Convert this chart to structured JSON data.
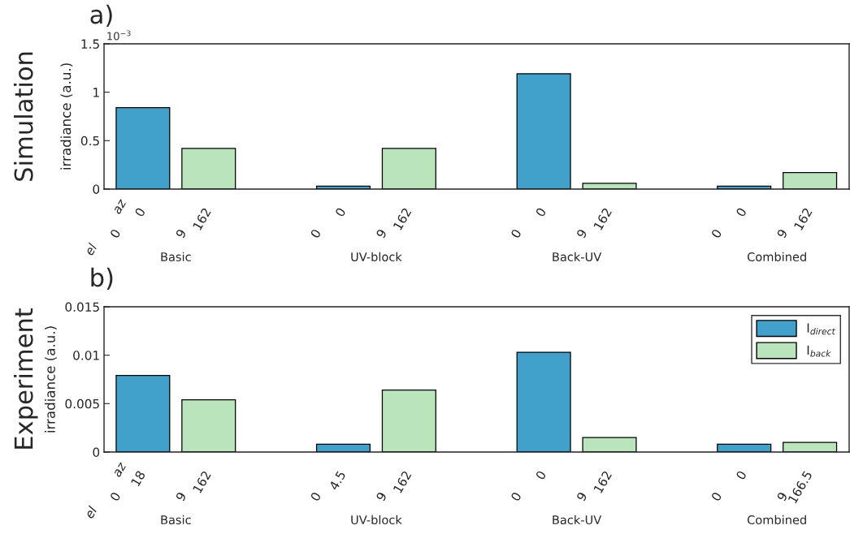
{
  "chart_data": [
    {
      "type": "bar",
      "title": "a)",
      "ylabel": "irradiance (a.u.)",
      "categories": [
        "Basic",
        "UV-block",
        "Back-UV",
        "Combined"
      ],
      "series": [
        {
          "color": "#42a1cb",
          "values": [
            0.84,
            0.03,
            1.19,
            0.03
          ]
        },
        {
          "color": "#bae4bc",
          "values": [
            0.42,
            0.42,
            0.06,
            0.17
          ]
        }
      ],
      "ylim": [
        0,
        1.5
      ],
      "yticks": [
        0,
        0.5,
        1,
        1.5
      ],
      "grid": false,
      "legend": false,
      "annotations": [
        "Simulation",
        "10$^{−3}$",
        "az",
        "el",
        "0",
        "162",
        "0",
        "162",
        "0",
        "162",
        "0",
        "162",
        "0",
        "9",
        "0",
        "9",
        "0",
        "9",
        "0",
        "9"
      ]
    },
    {
      "type": "bar",
      "title": "b)",
      "ylabel": "irradiance (a.u.)",
      "categories": [
        "Basic",
        "UV-block",
        "Back-UV",
        "Combined"
      ],
      "series": [
        {
          "name": "I$_{direct}$",
          "color": "#42a1cb",
          "values": [
            0.0079,
            0.0008,
            0.0103,
            0.0008
          ]
        },
        {
          "name": "I$_{back}$",
          "color": "#bae4bc",
          "values": [
            0.0054,
            0.0064,
            0.0015,
            0.001
          ]
        }
      ],
      "ylim": [
        0,
        0.015
      ],
      "yticks": [
        0,
        0.005,
        0.01,
        0.015
      ],
      "grid": false,
      "legend": "top right",
      "annotations": [
        "Experiment",
        "az",
        "el",
        "18",
        "162",
        "4.5",
        "162",
        "0",
        "162",
        "0",
        "166.5",
        "0",
        "9",
        "0",
        "9",
        "0",
        "9",
        "0",
        "9"
      ]
    }
  ]
}
